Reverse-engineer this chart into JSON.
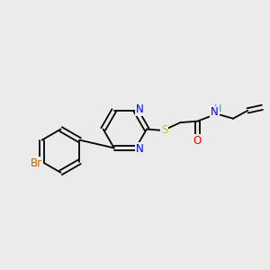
{
  "background_color": "#ebebeb",
  "atom_colors": {
    "N": "#0000ff",
    "S": "#cccc00",
    "O": "#ff0000",
    "Br": "#cc6600",
    "C": "#000000",
    "H": "#5588aa"
  },
  "bond_lw": 1.3,
  "font_size": 8.5,
  "figsize": [
    3.0,
    3.0
  ],
  "dpi": 100,
  "xlim": [
    0,
    10
  ],
  "ylim": [
    0,
    10
  ]
}
